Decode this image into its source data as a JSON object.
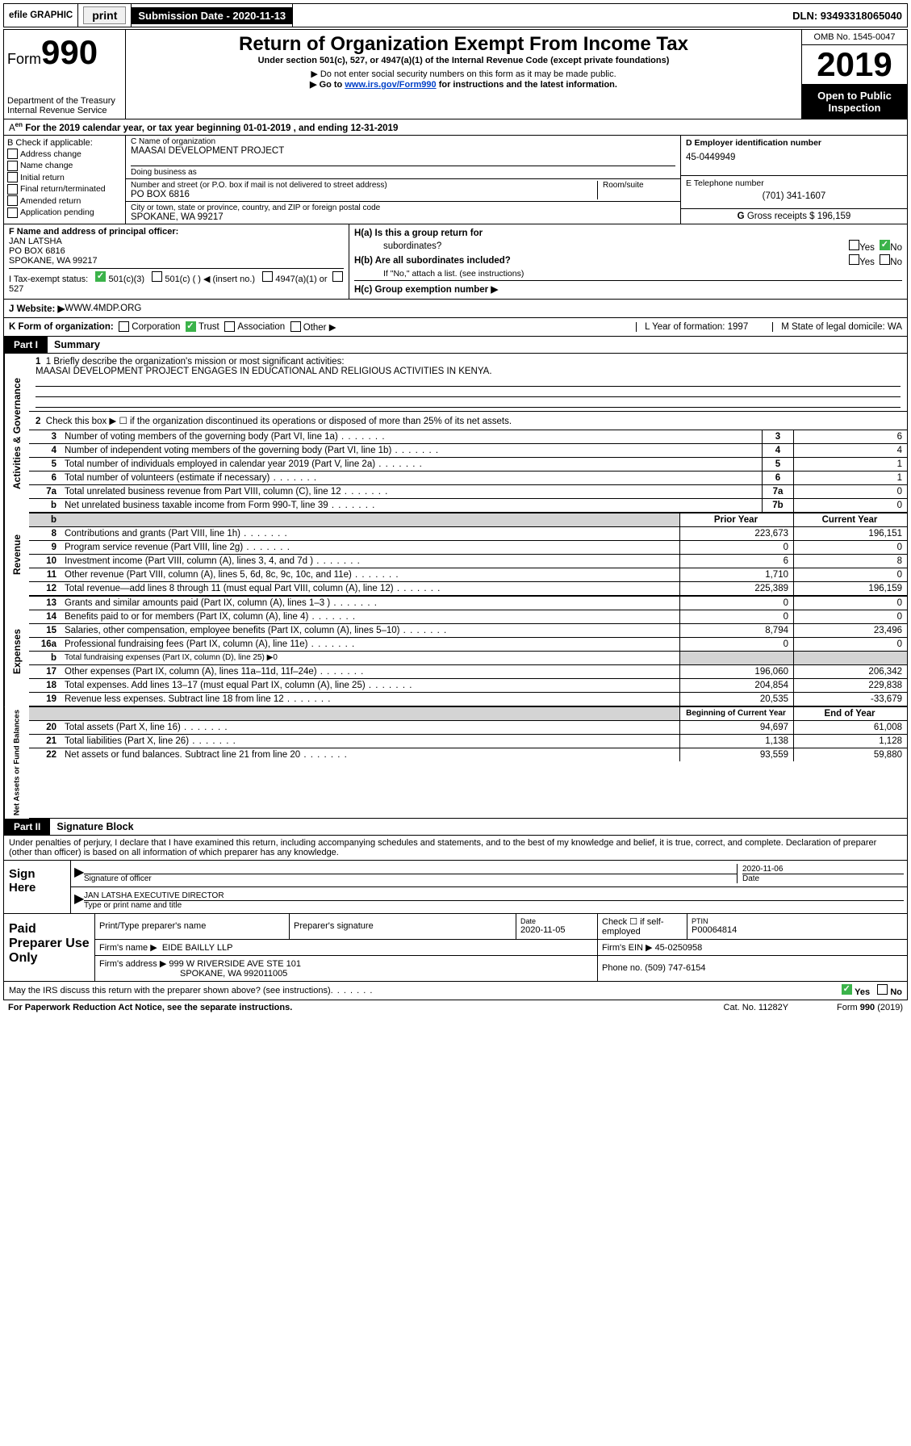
{
  "top": {
    "efile": "efile GRAPHIC",
    "print": "print",
    "subdate_lbl": "Submission Date - 2020-11-13",
    "dln": "DLN: 93493318065040"
  },
  "header": {
    "form": "Form",
    "num": "990",
    "title": "Return of Organization Exempt From Income Tax",
    "sub": "Under section 501(c), 527, or 4947(a)(1) of the Internal Revenue Code (except private foundations)",
    "note1": "▶ Do not enter social security numbers on this form as it may be made public.",
    "note2_a": "▶ Go to ",
    "note2_link": "www.irs.gov/Form990",
    "note2_b": " for instructions and the latest information.",
    "dept": "Department of the Treasury\nInternal Revenue Service",
    "omb": "OMB No. 1545-0047",
    "year": "2019",
    "open": "Open to Public Inspection"
  },
  "A": "For the 2019 calendar year, or tax year beginning 01-01-2019     , and ending 12-31-2019",
  "B": {
    "hdr": "B Check if applicable:",
    "items": [
      "Address change",
      "Name change",
      "Initial return",
      "Final return/terminated",
      "Amended return",
      "Application pending"
    ]
  },
  "C": {
    "name_lbl": "C Name of organization",
    "name": "MAASAI DEVELOPMENT PROJECT",
    "dba_lbl": "Doing business as",
    "street_lbl": "Number and street (or P.O. box if mail is not delivered to street address)",
    "street": "PO BOX 6816",
    "room_lbl": "Room/suite",
    "city_lbl": "City or town, state or province, country, and ZIP or foreign postal code",
    "city": "SPOKANE, WA  99217"
  },
  "D": {
    "lbl": "D Employer identification number",
    "val": "45-0449949"
  },
  "E": {
    "lbl": "E Telephone number",
    "val": "(701) 341-1607"
  },
  "G": {
    "lbl": "G",
    "txt": "Gross receipts $ 196,159"
  },
  "F": {
    "lbl": "F  Name and address of principal officer:",
    "name": "JAN LATSHA",
    "addr1": "PO BOX 6816",
    "addr2": "SPOKANE, WA  99217"
  },
  "H": {
    "a_lbl": "H(a)  Is this a group return for",
    "a_sub": "subordinates?",
    "b_lbl": "H(b)  Are all subordinates included?",
    "b_note": "If \"No,\" attach a list. (see instructions)",
    "c_lbl": "H(c)  Group exemption number ▶",
    "yes": "Yes",
    "no": "No"
  },
  "I": {
    "lbl": "I    Tax-exempt status:",
    "a": "501(c)(3)",
    "b": "501(c) (   ) ◀ (insert no.)",
    "c": "4947(a)(1) or",
    "d": "527"
  },
  "J": {
    "lbl": "J    Website: ▶",
    "val": " WWW.4MDP.ORG"
  },
  "K": {
    "lbl": "K Form of organization:",
    "opts": [
      "Corporation",
      "Trust",
      "Association",
      "Other ▶"
    ],
    "L": "L Year of formation: 1997",
    "M": "M State of legal domicile: WA"
  },
  "part1": {
    "tab": "Part I",
    "title": "Summary"
  },
  "gov": {
    "label": "Activities & Governance",
    "line1": "1  Briefly describe the organization's mission or most significant activities:",
    "mission": "MAASAI DEVELOPMENT PROJECT ENGAGES IN EDUCATIONAL AND RELIGIOUS ACTIVITIES IN KENYA.",
    "line2": "Check this box ▶ ☐  if the organization discontinued its operations or disposed of more than 25% of its net assets.",
    "rows": [
      {
        "n": "3",
        "t": "Number of voting members of the governing body (Part VI, line 1a)",
        "b": "3",
        "v": "6"
      },
      {
        "n": "4",
        "t": "Number of independent voting members of the governing body (Part VI, line 1b)",
        "b": "4",
        "v": "4"
      },
      {
        "n": "5",
        "t": "Total number of individuals employed in calendar year 2019 (Part V, line 2a)",
        "b": "5",
        "v": "1"
      },
      {
        "n": "6",
        "t": "Total number of volunteers (estimate if necessary)",
        "b": "6",
        "v": "1"
      },
      {
        "n": "7a",
        "t": "Total unrelated business revenue from Part VIII, column (C), line 12",
        "b": "7a",
        "v": "0"
      },
      {
        "n": "b",
        "t": "Net unrelated business taxable income from Form 990-T, line 39",
        "b": "7b",
        "v": "0"
      }
    ]
  },
  "colhdr": {
    "py": "Prior Year",
    "cy": "Current Year"
  },
  "rev": {
    "label": "Revenue",
    "rows": [
      {
        "n": "8",
        "t": "Contributions and grants (Part VIII, line 1h)",
        "py": "223,673",
        "cy": "196,151"
      },
      {
        "n": "9",
        "t": "Program service revenue (Part VIII, line 2g)",
        "py": "0",
        "cy": "0"
      },
      {
        "n": "10",
        "t": "Investment income (Part VIII, column (A), lines 3, 4, and 7d )",
        "py": "6",
        "cy": "8"
      },
      {
        "n": "11",
        "t": "Other revenue (Part VIII, column (A), lines 5, 6d, 8c, 9c, 10c, and 11e)",
        "py": "1,710",
        "cy": "0"
      },
      {
        "n": "12",
        "t": "Total revenue—add lines 8 through 11 (must equal Part VIII, column (A), line 12)",
        "py": "225,389",
        "cy": "196,159"
      }
    ]
  },
  "exp": {
    "label": "Expenses",
    "rows": [
      {
        "n": "13",
        "t": "Grants and similar amounts paid (Part IX, column (A), lines 1–3 )",
        "py": "0",
        "cy": "0"
      },
      {
        "n": "14",
        "t": "Benefits paid to or for members (Part IX, column (A), line 4)",
        "py": "0",
        "cy": "0"
      },
      {
        "n": "15",
        "t": "Salaries, other compensation, employee benefits (Part IX, column (A), lines 5–10)",
        "py": "8,794",
        "cy": "23,496"
      },
      {
        "n": "16a",
        "t": "Professional fundraising fees (Part IX, column (A), line 11e)",
        "py": "0",
        "cy": "0"
      },
      {
        "n": "b",
        "t": "Total fundraising expenses (Part IX, column (D), line 25) ▶0",
        "py": "",
        "cy": "",
        "shade": true,
        "small": true
      },
      {
        "n": "17",
        "t": "Other expenses (Part IX, column (A), lines 11a–11d, 11f–24e)",
        "py": "196,060",
        "cy": "206,342"
      },
      {
        "n": "18",
        "t": "Total expenses. Add lines 13–17 (must equal Part IX, column (A), line 25)",
        "py": "204,854",
        "cy": "229,838"
      },
      {
        "n": "19",
        "t": "Revenue less expenses. Subtract line 18 from line 12",
        "py": "20,535",
        "cy": "-33,679"
      }
    ]
  },
  "colhdr2": {
    "py": "Beginning of Current Year",
    "cy": "End of Year"
  },
  "net": {
    "label": "Net Assets or Fund Balances",
    "rows": [
      {
        "n": "20",
        "t": "Total assets (Part X, line 16)",
        "py": "94,697",
        "cy": "61,008"
      },
      {
        "n": "21",
        "t": "Total liabilities (Part X, line 26)",
        "py": "1,138",
        "cy": "1,128"
      },
      {
        "n": "22",
        "t": "Net assets or fund balances. Subtract line 21 from line 20",
        "py": "93,559",
        "cy": "59,880"
      }
    ]
  },
  "part2": {
    "tab": "Part II",
    "title": "Signature Block"
  },
  "perjury": "Under penalties of perjury, I declare that I have examined this return, including accompanying schedules and statements, and to the best of my knowledge and belief, it is true, correct, and complete. Declaration of preparer (other than officer) is based on all information of which preparer has any knowledge.",
  "sign": {
    "left": "Sign Here",
    "row1_lbl": "Signature of officer",
    "row1_date": "2020-11-06",
    "row1_date_lbl": "Date",
    "row2_val": "JAN LATSHA EXECUTIVE DIRECTOR",
    "row2_lbl": "Type or print name and title"
  },
  "paid": {
    "left": "Paid Preparer Use Only",
    "h1": "Print/Type preparer's name",
    "h2": "Preparer's signature",
    "h3": "Date",
    "h4": "Check ☐ if self-employed",
    "h5": "PTIN",
    "date": "2020-11-05",
    "ptin": "P00064814",
    "firm_lbl": "Firm's name    ▶",
    "firm": "EIDE BAILLY LLP",
    "ein_lbl": "Firm's EIN ▶",
    "ein": "45-0250958",
    "addr_lbl": "Firm's address ▶",
    "addr1": "999 W RIVERSIDE AVE STE 101",
    "addr2": "SPOKANE, WA  992011005",
    "phone_lbl": "Phone no.",
    "phone": "(509) 747-6154"
  },
  "footer": {
    "discuss": "May the IRS discuss this return with the preparer shown above? (see instructions)",
    "yes": "Yes",
    "no": "No",
    "pra": "For Paperwork Reduction Act Notice, see the separate instructions.",
    "cat": "Cat. No. 11282Y",
    "form": "Form 990 (2019)"
  }
}
